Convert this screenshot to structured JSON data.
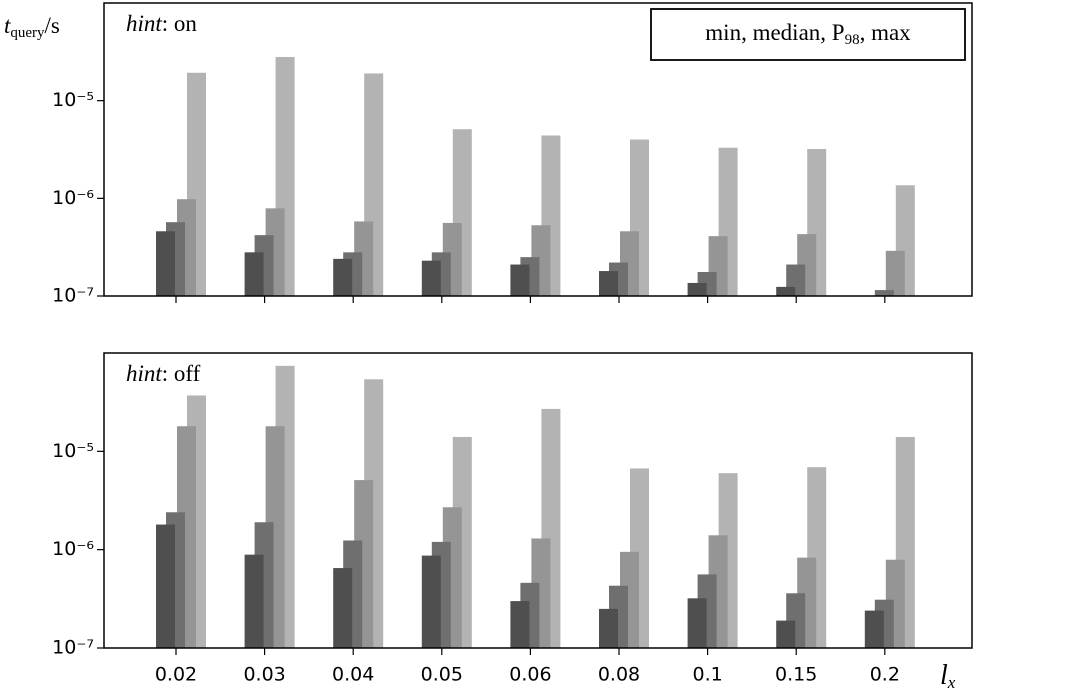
{
  "chart_data": [
    {
      "type": "bar",
      "log": true,
      "ylabel": [
        "t",
        "query",
        "/s"
      ],
      "annotation": [
        "hint",
        ": on"
      ],
      "legend": [
        "min, median, P",
        "98",
        ", max"
      ],
      "ylim": [
        1e-07,
        0.0001
      ],
      "yticks": [
        {
          "value": 1e-07,
          "label": "10⁻⁷"
        },
        {
          "value": 1e-06,
          "label": "10⁻⁶"
        },
        {
          "value": 1e-05,
          "label": "10⁻⁵"
        }
      ],
      "series": [
        {
          "color": "#4f4f4f",
          "values": [
            4.6e-07,
            2.8e-07,
            2.4e-07,
            2.3e-07,
            2.1e-07,
            1.8e-07,
            1.36e-07,
            1.24e-07,
            null
          ]
        },
        {
          "color": "#6f6f6f",
          "values": [
            5.7e-07,
            4.2e-07,
            2.8e-07,
            2.8e-07,
            2.5e-07,
            2.2e-07,
            1.76e-07,
            2.1e-07,
            1.15e-07
          ]
        },
        {
          "color": "#959595",
          "values": [
            9.8e-07,
            7.9e-07,
            5.8e-07,
            5.6e-07,
            5.3e-07,
            4.6e-07,
            4.1e-07,
            4.3e-07,
            2.9e-07
          ]
        },
        {
          "color": "#b3b3b3",
          "values": [
            1.93e-05,
            2.8e-05,
            1.9e-05,
            5.1e-06,
            4.4e-06,
            4e-06,
            3.3e-06,
            3.2e-06,
            1.36e-06
          ]
        }
      ]
    },
    {
      "type": "bar",
      "log": true,
      "annotation": [
        "hint",
        ": off"
      ],
      "xlabel": [
        "l",
        "x"
      ],
      "categories": [
        "0.02",
        "0.03",
        "0.04",
        "0.05",
        "0.06",
        "0.08",
        "0.1",
        "0.15",
        "0.2"
      ],
      "ylim": [
        1e-07,
        0.0001
      ],
      "yticks": [
        {
          "value": 1e-07,
          "label": "10⁻⁷"
        },
        {
          "value": 1e-06,
          "label": "10⁻⁶"
        },
        {
          "value": 1e-05,
          "label": "10⁻⁵"
        }
      ],
      "series": [
        {
          "color": "#4f4f4f",
          "values": [
            1.8e-06,
            8.9e-07,
            6.5e-07,
            8.7e-07,
            3e-07,
            2.5e-07,
            3.2e-07,
            1.9e-07,
            2.4e-07
          ]
        },
        {
          "color": "#6f6f6f",
          "values": [
            2.4e-06,
            1.9e-06,
            1.24e-06,
            1.2e-06,
            4.6e-07,
            4.3e-07,
            5.6e-07,
            3.6e-07,
            3.1e-07
          ]
        },
        {
          "color": "#959595",
          "values": [
            1.8e-05,
            1.8e-05,
            5.1e-06,
            2.7e-06,
            1.3e-06,
            9.5e-07,
            1.4e-06,
            8.3e-07,
            7.9e-07
          ]
        },
        {
          "color": "#b3b3b3",
          "values": [
            3.7e-05,
            7.4e-05,
            5.4e-05,
            1.4e-05,
            2.7e-05,
            6.7e-06,
            6e-06,
            6.9e-06,
            1.4e-05
          ]
        }
      ]
    }
  ]
}
